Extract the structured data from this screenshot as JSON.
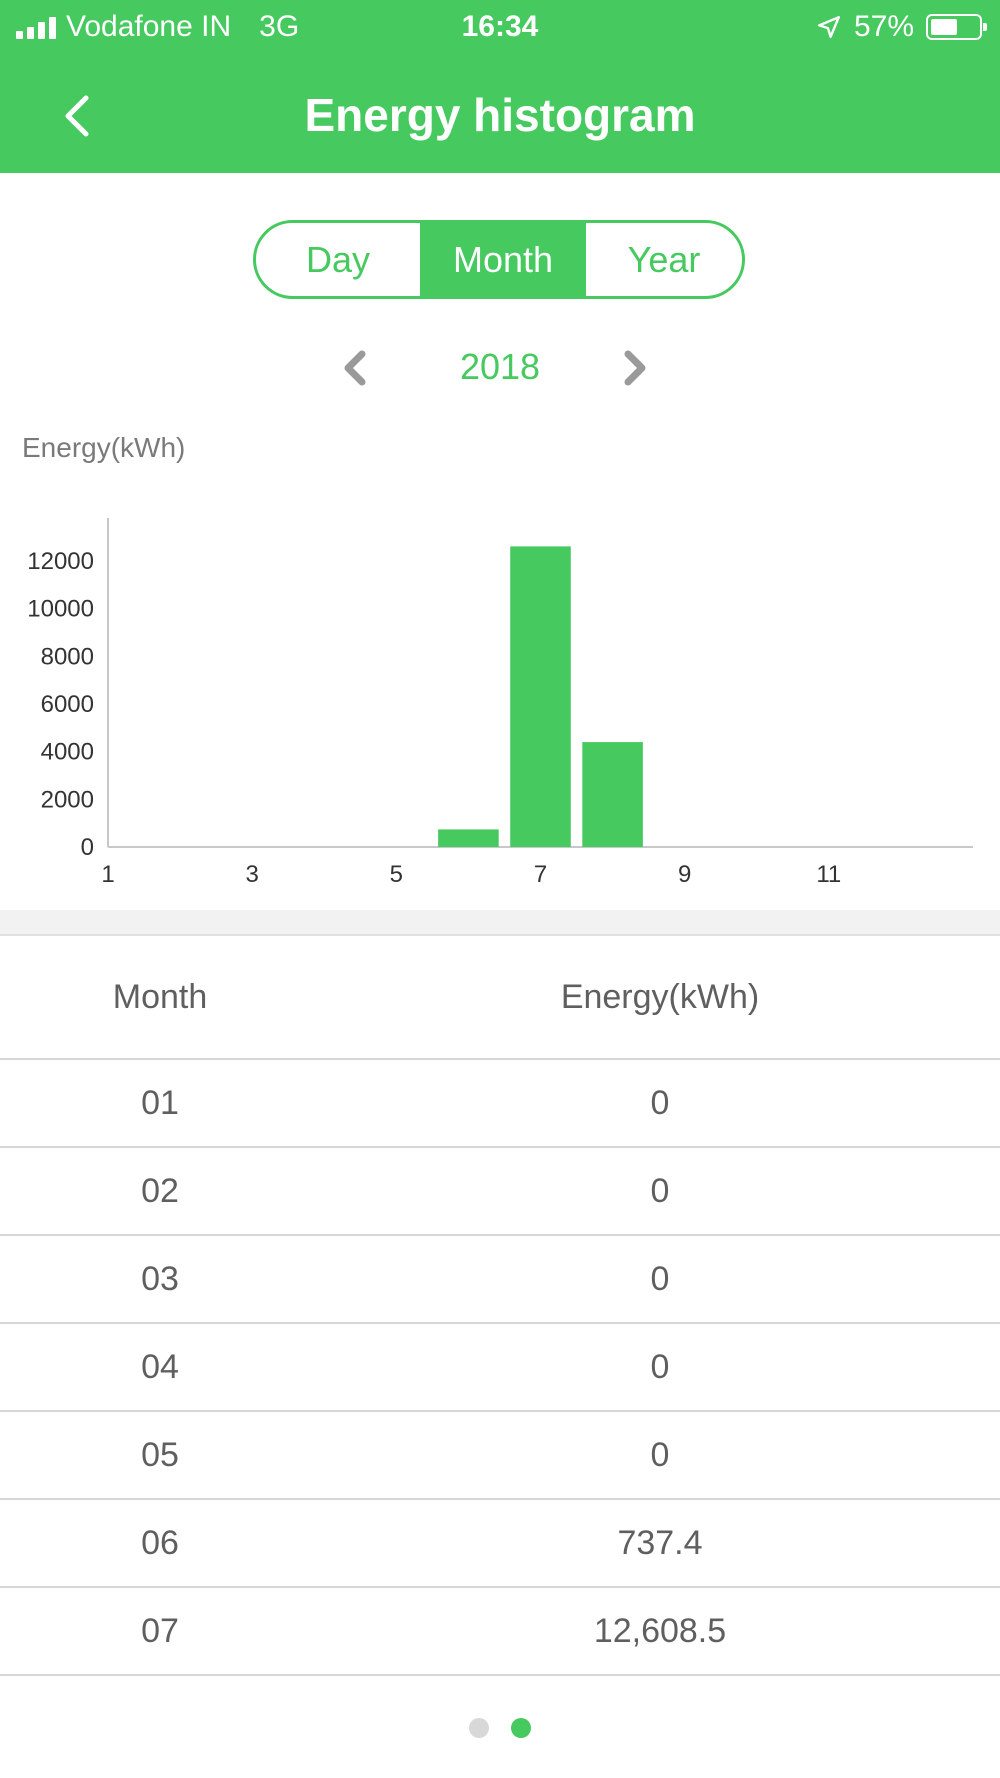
{
  "status_bar": {
    "carrier": "Vodafone IN",
    "network": "3G",
    "time": "16:34",
    "battery": "57%",
    "battery_level": 0.57
  },
  "nav": {
    "title": "Energy histogram",
    "back_icon": "chevron-left-icon"
  },
  "period_tabs": {
    "items": [
      "Day",
      "Month",
      "Year"
    ],
    "selected": "Month"
  },
  "year_selector": {
    "value": "2018",
    "prev_icon": "chevron-left-icon",
    "next_icon": "chevron-right-icon"
  },
  "chart_data": {
    "type": "bar",
    "ylabel": "Energy(kWh)",
    "categories": [
      1,
      2,
      3,
      4,
      5,
      6,
      7,
      8,
      9,
      10,
      11,
      12
    ],
    "values": [
      0,
      0,
      0,
      0,
      0,
      737.4,
      12608.5,
      4400,
      0,
      0,
      0,
      0
    ],
    "x_ticks": [
      "1",
      "3",
      "5",
      "7",
      "9",
      "11"
    ],
    "y_ticks": [
      "0",
      "2000",
      "4000",
      "6000",
      "8000",
      "10000",
      "12000"
    ],
    "ylim": [
      0,
      13800
    ],
    "bar_color": "#46c95f"
  },
  "table": {
    "headers": [
      "Month",
      "Energy(kWh)"
    ],
    "rows": [
      [
        "01",
        "0"
      ],
      [
        "02",
        "0"
      ],
      [
        "03",
        "0"
      ],
      [
        "04",
        "0"
      ],
      [
        "05",
        "0"
      ],
      [
        "06",
        "737.4"
      ],
      [
        "07",
        "12,608.5"
      ]
    ]
  },
  "page_indicator": {
    "count": 2,
    "active": 2
  },
  "colors": {
    "accent": "#46c95f",
    "text": "#5f5f5f"
  }
}
